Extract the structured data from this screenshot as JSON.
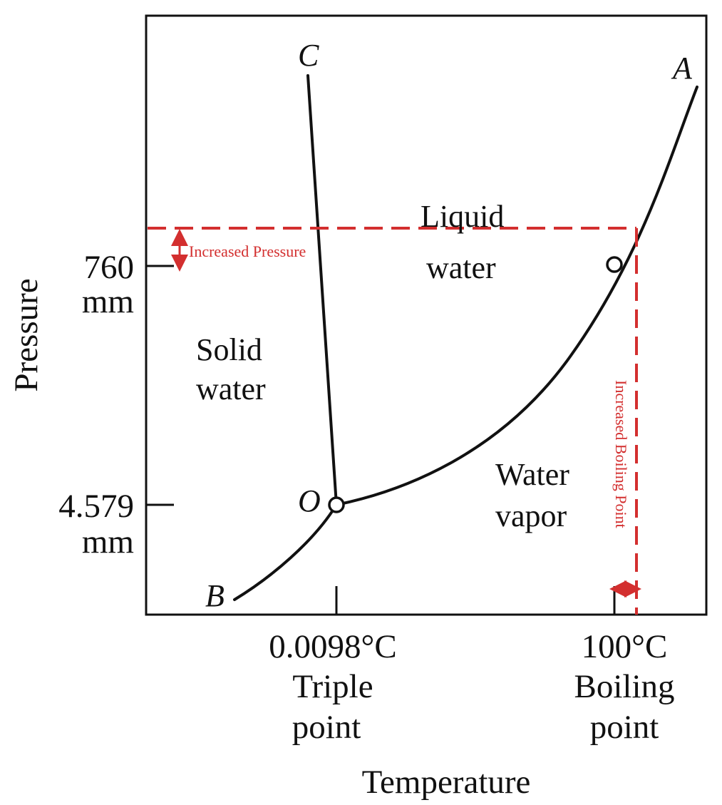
{
  "axes": {
    "y_label": "Pressure",
    "x_label": "Temperature",
    "y_ticks": [
      {
        "value": "760",
        "unit": "mm"
      },
      {
        "value": "4.579",
        "unit": "mm"
      }
    ],
    "x_ticks": [
      {
        "value": "0.0098°C",
        "caption_1": "Triple",
        "caption_2": "point"
      },
      {
        "value": "100°C",
        "caption_1": "Boiling",
        "caption_2": "point"
      }
    ]
  },
  "regions": {
    "solid_1": "Solid",
    "solid_2": "water",
    "liquid_1": "Liquid",
    "liquid_2": "water",
    "vapor_1": "Water",
    "vapor_2": "vapor"
  },
  "points": {
    "A": "A",
    "B": "B",
    "C": "C",
    "O": "O"
  },
  "annotations": {
    "increased_pressure": "Increased Pressure",
    "increased_boiling_point": "Increased Boiling Point",
    "color": "#d32f2f"
  }
}
